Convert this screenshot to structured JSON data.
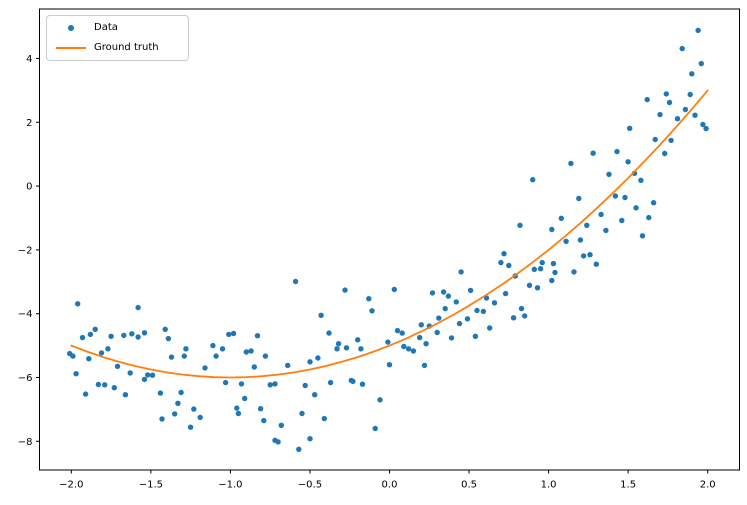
{
  "chart_data": {
    "type": "scatter",
    "title": "",
    "xlabel": "",
    "ylabel": "",
    "grid": false,
    "background": "#ffffff",
    "frame_color": "#000000",
    "xlim": [
      -2.2,
      2.2
    ],
    "ylim": [
      -8.9,
      5.55
    ],
    "xticks": {
      "values": [
        -2.0,
        -1.5,
        -1.0,
        -0.5,
        0.0,
        0.5,
        1.0,
        1.5,
        2.0
      ],
      "labels": [
        "−2.0",
        "−1.5",
        "−1.0",
        "−0.5",
        "0.0",
        "0.5",
        "1.0",
        "1.5",
        "2.0"
      ]
    },
    "yticks": {
      "values": [
        4,
        2,
        0,
        -2,
        -4,
        -6,
        -8
      ],
      "labels": [
        "4",
        "2",
        "0",
        "−2",
        "−4",
        "−6",
        "−8"
      ]
    },
    "legend": {
      "position": "upper left",
      "entries": [
        {
          "label": "Data",
          "type": "marker",
          "color": "#1f77b4"
        },
        {
          "label": "Ground truth",
          "type": "line",
          "color": "#ff7f0e"
        }
      ]
    },
    "series": [
      {
        "name": "Data",
        "type": "scatter",
        "color": "#1f77b4",
        "marker": "circle",
        "points": [
          [
            -2.01,
            -5.25
          ],
          [
            -1.99,
            -5.33
          ],
          [
            -1.97,
            -5.88
          ],
          [
            -1.96,
            -3.69
          ],
          [
            -1.93,
            -4.75
          ],
          [
            -1.91,
            -6.52
          ],
          [
            -1.89,
            -5.41
          ],
          [
            -1.88,
            -4.65
          ],
          [
            -1.85,
            -4.49
          ],
          [
            -1.83,
            -6.22
          ],
          [
            -1.81,
            -5.23
          ],
          [
            -1.79,
            -6.23
          ],
          [
            -1.77,
            -5.1
          ],
          [
            -1.75,
            -4.71
          ],
          [
            -1.73,
            -6.32
          ],
          [
            -1.71,
            -5.65
          ],
          [
            -1.67,
            -4.68
          ],
          [
            -1.66,
            -6.54
          ],
          [
            -1.63,
            -5.86
          ],
          [
            -1.62,
            -4.63
          ],
          [
            -1.58,
            -3.81
          ],
          [
            -1.58,
            -4.73
          ],
          [
            -1.54,
            -4.6
          ],
          [
            -1.54,
            -6.06
          ],
          [
            -1.52,
            -5.92
          ],
          [
            -1.49,
            -5.93
          ],
          [
            -1.44,
            -6.49
          ],
          [
            -1.43,
            -7.3
          ],
          [
            -1.41,
            -4.49
          ],
          [
            -1.39,
            -4.78
          ],
          [
            -1.37,
            -5.36
          ],
          [
            -1.35,
            -7.14
          ],
          [
            -1.33,
            -6.81
          ],
          [
            -1.31,
            -6.47
          ],
          [
            -1.29,
            -5.33
          ],
          [
            -1.28,
            -5.1
          ],
          [
            -1.25,
            -7.56
          ],
          [
            -1.23,
            -6.99
          ],
          [
            -1.19,
            -7.25
          ],
          [
            -1.16,
            -5.7
          ],
          [
            -1.11,
            -5.0
          ],
          [
            -1.09,
            -5.33
          ],
          [
            -1.05,
            -5.1
          ],
          [
            -1.03,
            -6.16
          ],
          [
            -1.01,
            -4.65
          ],
          [
            -0.98,
            -4.62
          ],
          [
            -0.96,
            -6.96
          ],
          [
            -0.95,
            -7.13
          ],
          [
            -0.93,
            -6.2
          ],
          [
            -0.91,
            -6.66
          ],
          [
            -0.9,
            -5.2
          ],
          [
            -0.87,
            -5.17
          ],
          [
            -0.85,
            -5.67
          ],
          [
            -0.83,
            -4.69
          ],
          [
            -0.81,
            -6.98
          ],
          [
            -0.79,
            -7.35
          ],
          [
            -0.78,
            -5.33
          ],
          [
            -0.75,
            -6.23
          ],
          [
            -0.72,
            -6.2
          ],
          [
            -0.72,
            -7.97
          ],
          [
            -0.7,
            -8.02
          ],
          [
            -0.68,
            -7.5
          ],
          [
            -0.64,
            -5.62
          ],
          [
            -0.59,
            -2.99
          ],
          [
            -0.57,
            -8.25
          ],
          [
            -0.55,
            -7.13
          ],
          [
            -0.53,
            -6.25
          ],
          [
            -0.5,
            -5.51
          ],
          [
            -0.5,
            -7.92
          ],
          [
            -0.47,
            -6.54
          ],
          [
            -0.45,
            -5.39
          ],
          [
            -0.43,
            -4.05
          ],
          [
            -0.41,
            -7.29
          ],
          [
            -0.38,
            -4.61
          ],
          [
            -0.37,
            -6.16
          ],
          [
            -0.33,
            -5.1
          ],
          [
            -0.32,
            -4.94
          ],
          [
            -0.28,
            -3.26
          ],
          [
            -0.27,
            -5.07
          ],
          [
            -0.24,
            -6.09
          ],
          [
            -0.23,
            -6.12
          ],
          [
            -0.2,
            -4.82
          ],
          [
            -0.18,
            -5.1
          ],
          [
            -0.17,
            -6.21
          ],
          [
            -0.13,
            -3.53
          ],
          [
            -0.11,
            -3.91
          ],
          [
            -0.09,
            -7.6
          ],
          [
            -0.06,
            -6.7
          ],
          [
            -0.01,
            -4.89
          ],
          [
            0.0,
            -5.6
          ],
          [
            0.03,
            -3.24
          ],
          [
            0.05,
            -4.53
          ],
          [
            0.08,
            -4.61
          ],
          [
            0.09,
            -5.03
          ],
          [
            0.12,
            -5.1
          ],
          [
            0.15,
            -5.17
          ],
          [
            0.19,
            -4.75
          ],
          [
            0.2,
            -4.35
          ],
          [
            0.22,
            -5.62
          ],
          [
            0.23,
            -4.94
          ],
          [
            0.25,
            -4.39
          ],
          [
            0.27,
            -3.35
          ],
          [
            0.3,
            -4.59
          ],
          [
            0.31,
            -4.14
          ],
          [
            0.34,
            -3.32
          ],
          [
            0.35,
            -3.84
          ],
          [
            0.37,
            -3.45
          ],
          [
            0.39,
            -4.76
          ],
          [
            0.42,
            -3.63
          ],
          [
            0.44,
            -4.31
          ],
          [
            0.45,
            -2.69
          ],
          [
            0.49,
            -4.16
          ],
          [
            0.51,
            -3.27
          ],
          [
            0.54,
            -4.71
          ],
          [
            0.55,
            -3.9
          ],
          [
            0.59,
            -3.93
          ],
          [
            0.61,
            -3.51
          ],
          [
            0.63,
            -4.45
          ],
          [
            0.66,
            -3.66
          ],
          [
            0.7,
            -2.4
          ],
          [
            0.72,
            -2.12
          ],
          [
            0.73,
            -3.37
          ],
          [
            0.75,
            -2.49
          ],
          [
            0.78,
            -4.13
          ],
          [
            0.79,
            -2.82
          ],
          [
            0.82,
            -1.23
          ],
          [
            0.83,
            -3.84
          ],
          [
            0.85,
            -4.07
          ],
          [
            0.88,
            -3.11
          ],
          [
            0.9,
            0.2
          ],
          [
            0.91,
            -2.61
          ],
          [
            0.93,
            -3.19
          ],
          [
            0.95,
            -2.59
          ],
          [
            0.96,
            -2.4
          ],
          [
            1.02,
            -1.36
          ],
          [
            1.02,
            -2.96
          ],
          [
            1.03,
            -2.43
          ],
          [
            1.04,
            -2.71
          ],
          [
            1.08,
            -1.01
          ],
          [
            1.11,
            -1.73
          ],
          [
            1.14,
            0.71
          ],
          [
            1.16,
            -2.69
          ],
          [
            1.19,
            -0.39
          ],
          [
            1.2,
            -1.69
          ],
          [
            1.22,
            -2.19
          ],
          [
            1.24,
            -1.23
          ],
          [
            1.26,
            -2.15
          ],
          [
            1.28,
            1.03
          ],
          [
            1.3,
            -2.45
          ],
          [
            1.33,
            -0.89
          ],
          [
            1.36,
            -1.39
          ],
          [
            1.38,
            0.37
          ],
          [
            1.42,
            -0.31
          ],
          [
            1.43,
            1.08
          ],
          [
            1.46,
            -1.08
          ],
          [
            1.48,
            -0.36
          ],
          [
            1.5,
            0.76
          ],
          [
            1.51,
            1.81
          ],
          [
            1.54,
            0.4
          ],
          [
            1.55,
            -0.68
          ],
          [
            1.58,
            0.18
          ],
          [
            1.59,
            -1.56
          ],
          [
            1.62,
            2.71
          ],
          [
            1.63,
            -0.99
          ],
          [
            1.66,
            -0.52
          ],
          [
            1.67,
            1.46
          ],
          [
            1.7,
            2.24
          ],
          [
            1.73,
            1.02
          ],
          [
            1.74,
            2.89
          ],
          [
            1.76,
            2.62
          ],
          [
            1.77,
            1.43
          ],
          [
            1.81,
            2.11
          ],
          [
            1.84,
            4.31
          ],
          [
            1.86,
            2.4
          ],
          [
            1.89,
            2.87
          ],
          [
            1.9,
            3.52
          ],
          [
            1.92,
            2.22
          ],
          [
            1.94,
            4.88
          ],
          [
            1.96,
            3.84
          ],
          [
            1.97,
            1.93
          ],
          [
            1.99,
            1.8
          ]
        ]
      },
      {
        "name": "Ground truth",
        "type": "line",
        "color": "#ff7f0e",
        "formula": "y = (x+1)^2 - 6",
        "points": [
          [
            -2.0,
            -5.0
          ],
          [
            -1.9,
            -5.19
          ],
          [
            -1.8,
            -5.36
          ],
          [
            -1.7,
            -5.51
          ],
          [
            -1.6,
            -5.64
          ],
          [
            -1.5,
            -5.75
          ],
          [
            -1.4,
            -5.84
          ],
          [
            -1.3,
            -5.91
          ],
          [
            -1.2,
            -5.96
          ],
          [
            -1.1,
            -5.99
          ],
          [
            -1.0,
            -6.0
          ],
          [
            -0.9,
            -5.99
          ],
          [
            -0.8,
            -5.96
          ],
          [
            -0.7,
            -5.91
          ],
          [
            -0.6,
            -5.84
          ],
          [
            -0.5,
            -5.75
          ],
          [
            -0.4,
            -5.64
          ],
          [
            -0.3,
            -5.51
          ],
          [
            -0.2,
            -5.36
          ],
          [
            -0.1,
            -5.19
          ],
          [
            0.0,
            -5.0
          ],
          [
            0.1,
            -4.79
          ],
          [
            0.2,
            -4.56
          ],
          [
            0.3,
            -4.31
          ],
          [
            0.4,
            -4.04
          ],
          [
            0.5,
            -3.75
          ],
          [
            0.6,
            -3.44
          ],
          [
            0.7,
            -3.11
          ],
          [
            0.8,
            -2.76
          ],
          [
            0.9,
            -2.39
          ],
          [
            1.0,
            -2.0
          ],
          [
            1.1,
            -1.59
          ],
          [
            1.2,
            -1.16
          ],
          [
            1.3,
            -0.71
          ],
          [
            1.4,
            -0.24
          ],
          [
            1.5,
            0.25
          ],
          [
            1.6,
            0.76
          ],
          [
            1.7,
            1.29
          ],
          [
            1.8,
            1.84
          ],
          [
            1.9,
            2.41
          ],
          [
            2.0,
            3.0
          ]
        ]
      }
    ]
  }
}
